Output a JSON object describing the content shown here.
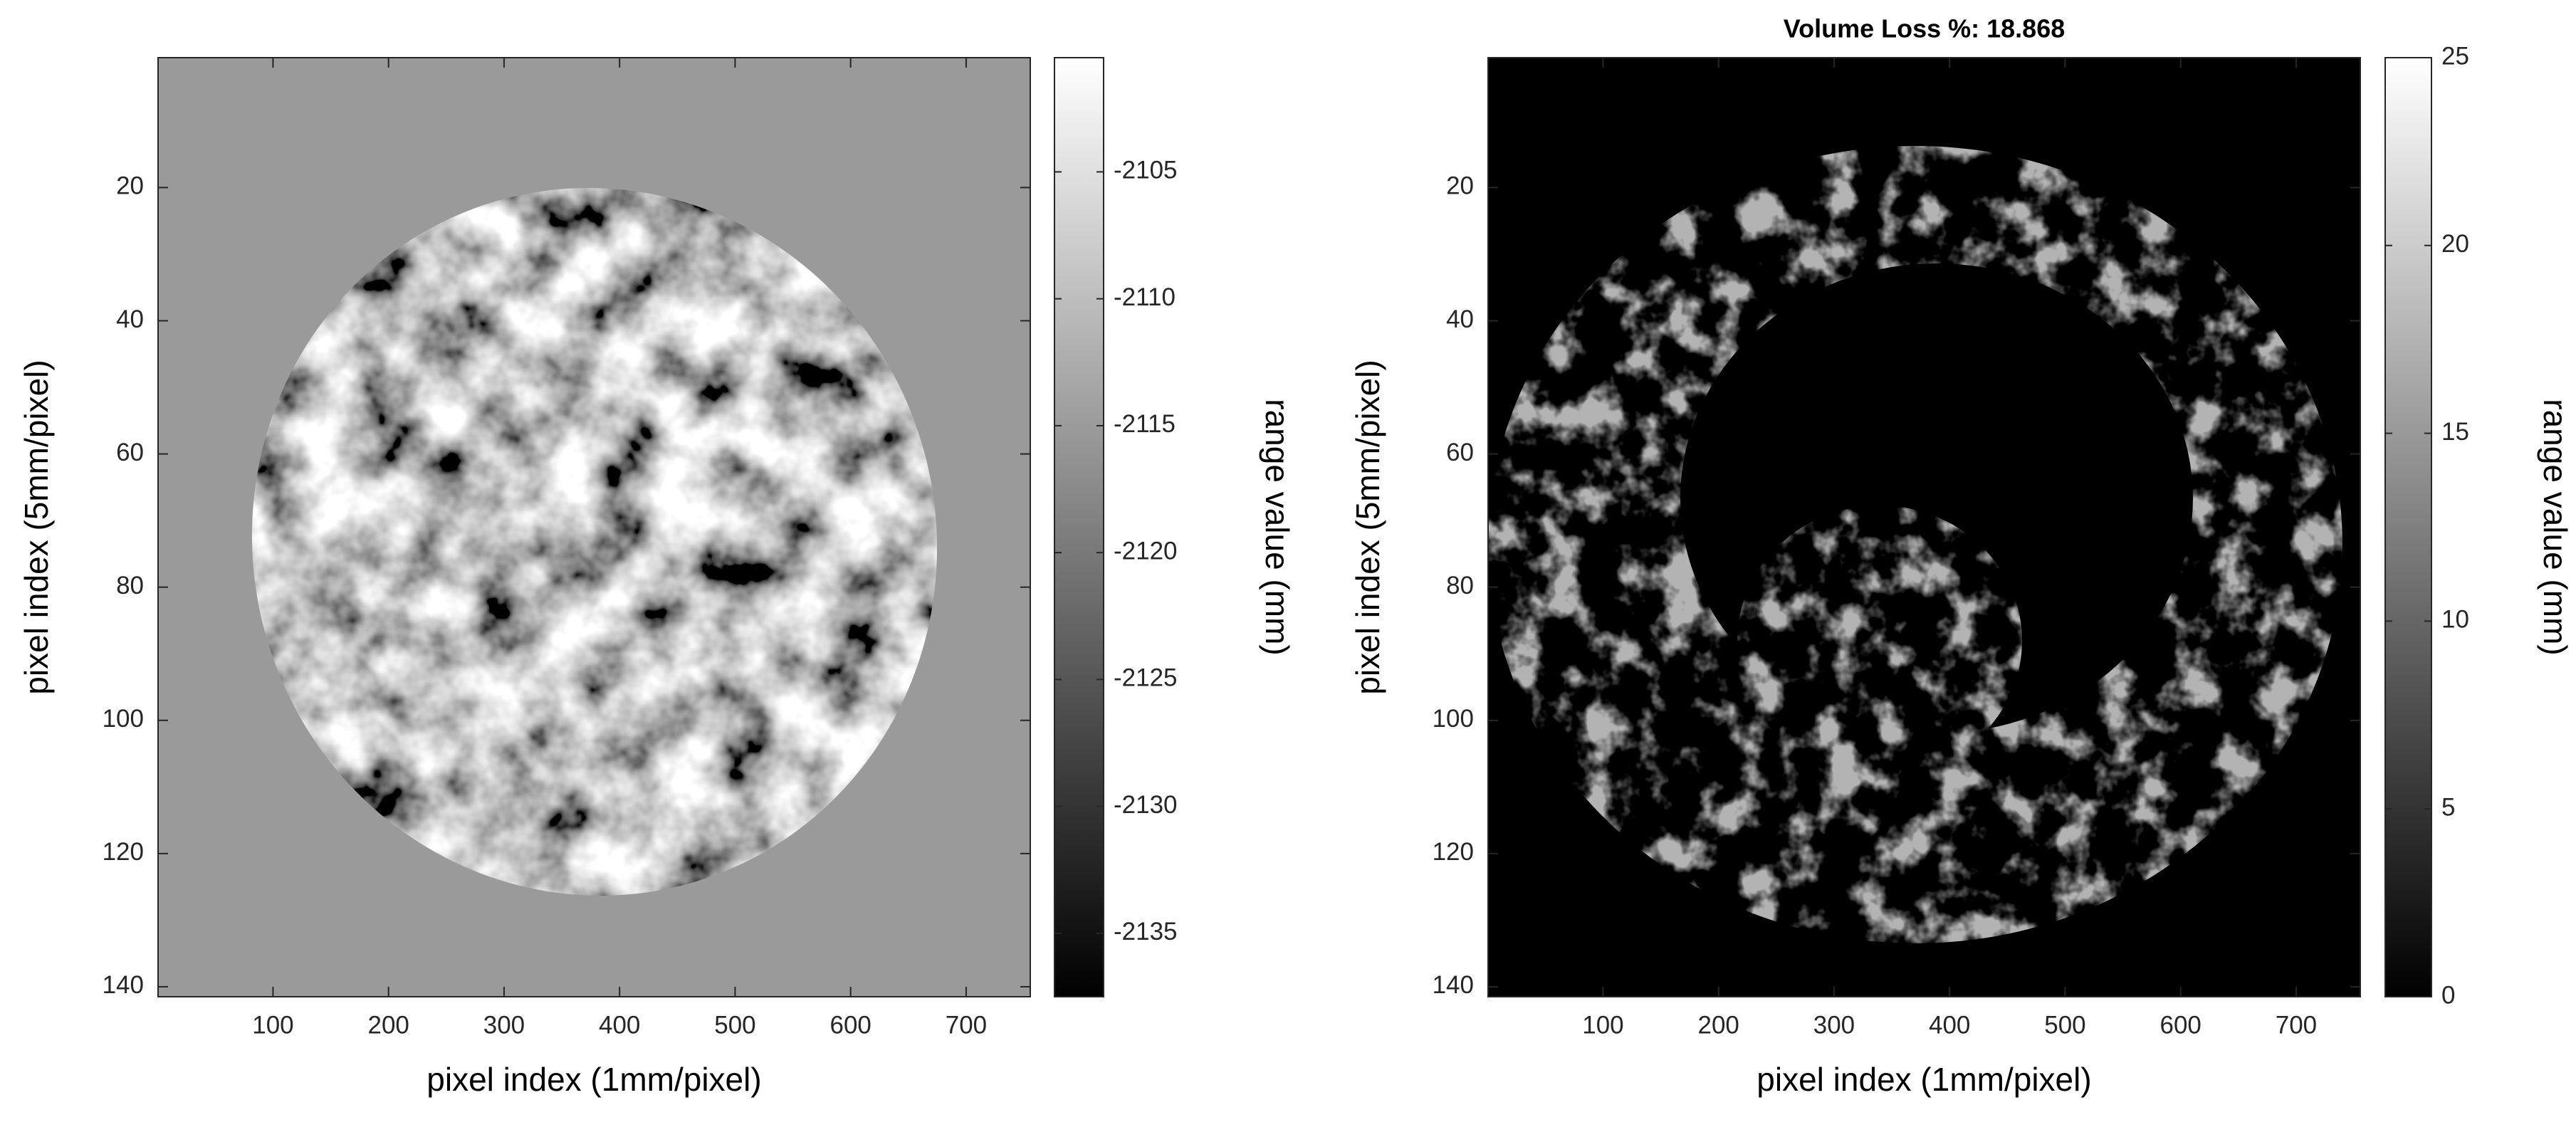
{
  "chart_data": [
    {
      "type": "heatmap",
      "xlabel": "pixel index (1mm/pixel)",
      "ylabel": "pixel index (5mm/pixel)",
      "xlim": [
        0.5,
        755.5
      ],
      "xticks": [
        100,
        200,
        300,
        400,
        500,
        600,
        700
      ],
      "ylim": [
        0.5,
        141.5
      ],
      "yticks": [
        20,
        40,
        60,
        80,
        100,
        120,
        140
      ],
      "y_reversed": true,
      "colormap": "gray",
      "colorbar": {
        "label": "range value (mm)",
        "clim": [
          -2137.5,
          -2100.5
        ],
        "ticks": [
          -2105,
          -2110,
          -2115,
          -2120,
          -2125,
          -2130,
          -2135
        ]
      }
    },
    {
      "type": "heatmap",
      "title": "Volume Loss %: 18.868",
      "xlabel": "pixel index (1mm/pixel)",
      "ylabel": "pixel index (5mm/pixel)",
      "xlim": [
        0.5,
        755.5
      ],
      "xticks": [
        100,
        200,
        300,
        400,
        500,
        600,
        700
      ],
      "ylim": [
        0.5,
        141.5
      ],
      "yticks": [
        20,
        40,
        60,
        80,
        100,
        120,
        140
      ],
      "y_reversed": true,
      "colormap": "gray",
      "colorbar": {
        "label": "range value (mm)",
        "clim": [
          0,
          25
        ],
        "ticks": [
          0,
          5,
          10,
          15,
          20,
          25
        ]
      }
    }
  ]
}
